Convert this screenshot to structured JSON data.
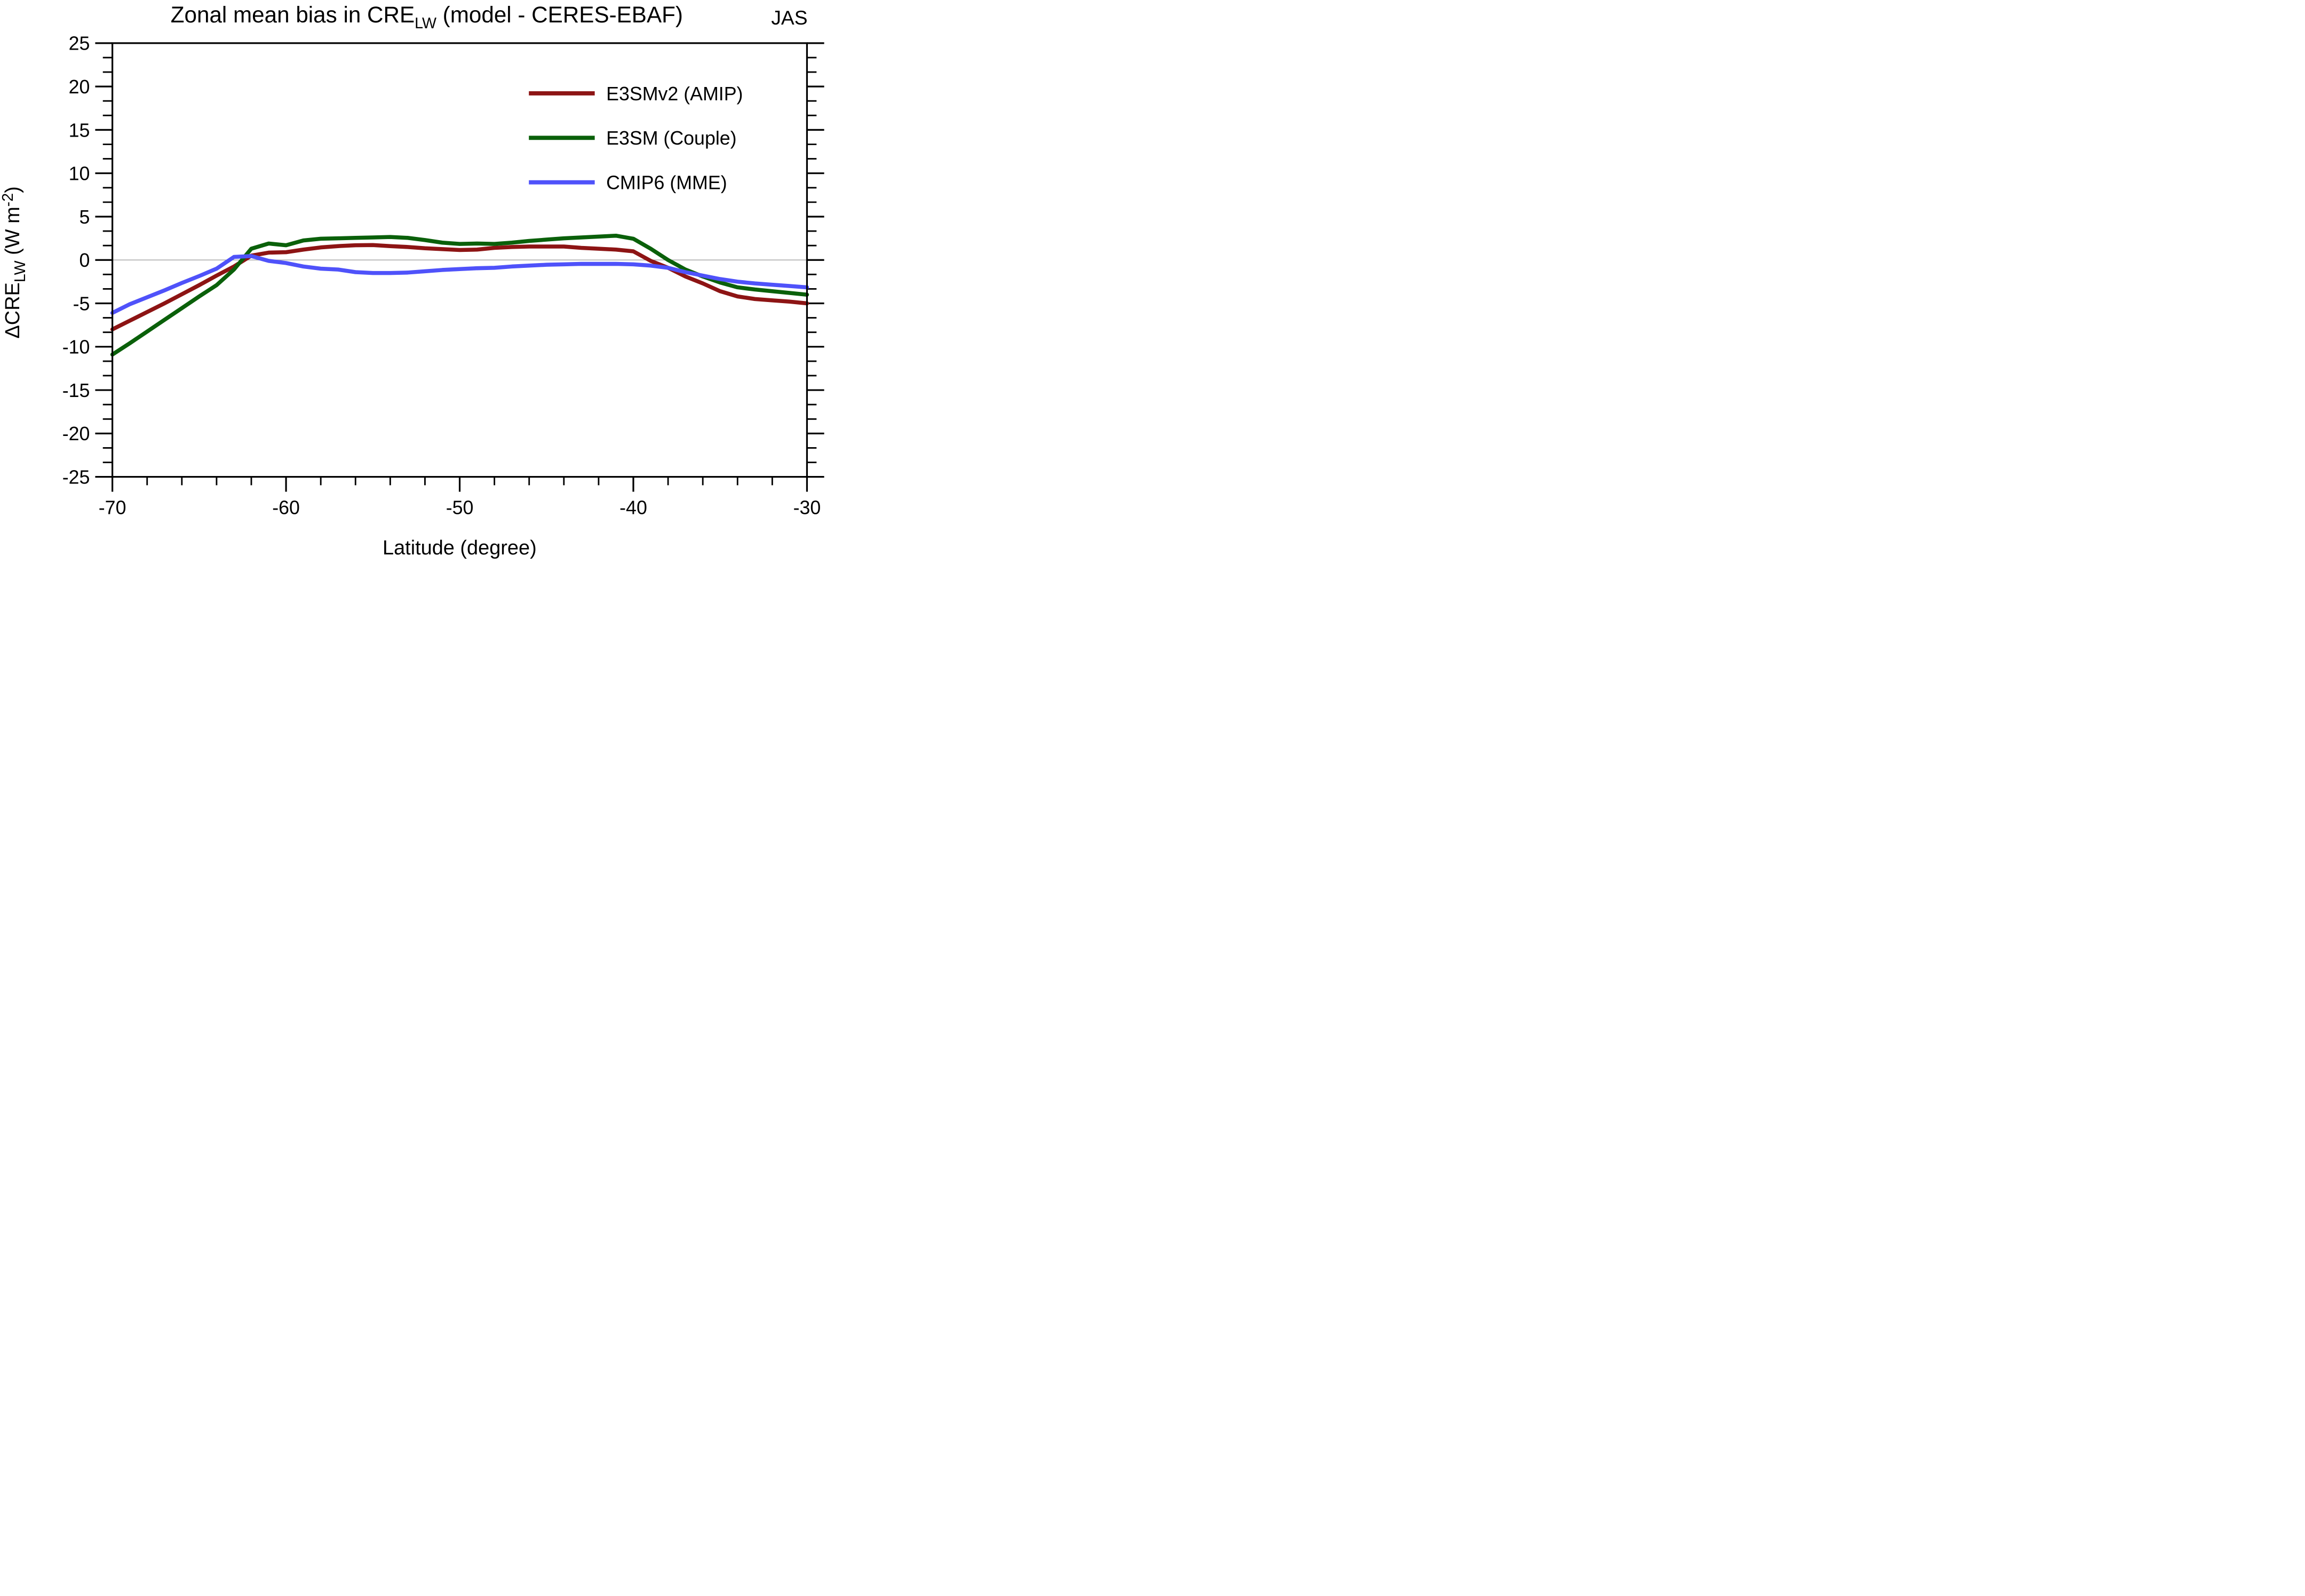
{
  "chart_data": {
    "type": "line",
    "title": {
      "pre": "Zonal mean bias in CRE",
      "sub": "LW",
      "post": " (model - CERES-EBAF)"
    },
    "corner_label": "JAS",
    "xlabel": "Latitude (degree)",
    "ylabel": {
      "pre": "ΔCRE",
      "sub": "LW",
      "mid": " (W m",
      "sup": "-2",
      "post": ")"
    },
    "xlim": [
      -70,
      -30
    ],
    "ylim": [
      -25,
      25
    ],
    "x_major_ticks": [
      -70,
      -60,
      -50,
      -40,
      -30
    ],
    "x_tick_labels": [
      "-70",
      "-60",
      "-50",
      "-40",
      "-30"
    ],
    "x_minor_step": 2,
    "y_major_ticks": [
      -25,
      -20,
      -15,
      -10,
      -5,
      0,
      5,
      10,
      15,
      20,
      25
    ],
    "y_tick_labels": [
      "-25",
      "-20",
      "-15",
      "-10",
      "-5",
      "0",
      "5",
      "10",
      "15",
      "20",
      "25"
    ],
    "y_minor_per_major": 2,
    "grid": "zero-line-only",
    "zero_line_color": "#a8a8a8",
    "legend_position": "upper-right-inside",
    "x": [
      -70,
      -69,
      -68,
      -67,
      -66,
      -65,
      -64,
      -63,
      -62,
      -61,
      -60,
      -59,
      -58,
      -57,
      -56,
      -55,
      -54,
      -53,
      -52,
      -51,
      -50,
      -49,
      -48,
      -47,
      -46,
      -45,
      -44,
      -43,
      -42,
      -41,
      -40,
      -39,
      -38,
      -37,
      -36,
      -35,
      -34,
      -33,
      -32,
      -31,
      -30
    ],
    "series": [
      {
        "name": "E3SMv2 (AMIP)",
        "color": "#8d1414",
        "values": [
          -8.0,
          -7.0,
          -6.0,
          -5.0,
          -3.95,
          -2.9,
          -1.8,
          -0.75,
          0.5,
          0.85,
          0.9,
          1.2,
          1.45,
          1.6,
          1.7,
          1.72,
          1.6,
          1.5,
          1.35,
          1.25,
          1.15,
          1.2,
          1.4,
          1.5,
          1.55,
          1.55,
          1.55,
          1.4,
          1.3,
          1.2,
          1.0,
          -0.1,
          -0.9,
          -1.9,
          -2.7,
          -3.6,
          -4.2,
          -4.5,
          -4.65,
          -4.8,
          -5.0
        ]
      },
      {
        "name": "E3SM (Couple)",
        "color": "#0a600a",
        "values": [
          -10.9,
          -9.6,
          -8.25,
          -6.9,
          -5.55,
          -4.2,
          -2.9,
          -1.1,
          1.3,
          1.9,
          1.7,
          2.25,
          2.45,
          2.5,
          2.55,
          2.6,
          2.65,
          2.55,
          2.3,
          2.0,
          1.85,
          1.9,
          1.85,
          2.0,
          2.2,
          2.35,
          2.5,
          2.6,
          2.7,
          2.8,
          2.45,
          1.3,
          0.0,
          -1.1,
          -1.9,
          -2.6,
          -3.15,
          -3.4,
          -3.6,
          -3.8,
          -4.0
        ]
      },
      {
        "name": "CMIP6 (MME)",
        "color": "#4f52fa",
        "values": [
          -6.1,
          -5.1,
          -4.3,
          -3.5,
          -2.65,
          -1.85,
          -1.0,
          0.35,
          0.45,
          -0.1,
          -0.35,
          -0.75,
          -1.0,
          -1.1,
          -1.4,
          -1.5,
          -1.5,
          -1.45,
          -1.3,
          -1.15,
          -1.05,
          -0.95,
          -0.9,
          -0.75,
          -0.65,
          -0.55,
          -0.5,
          -0.45,
          -0.45,
          -0.45,
          -0.5,
          -0.65,
          -0.9,
          -1.4,
          -1.8,
          -2.2,
          -2.5,
          -2.7,
          -2.85,
          -3.0,
          -3.15
        ]
      }
    ]
  }
}
